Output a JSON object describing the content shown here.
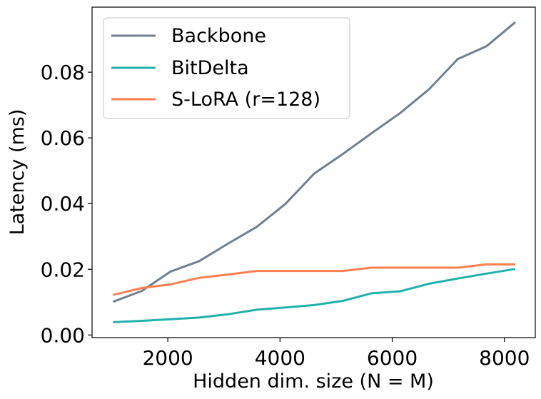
{
  "chart_data": {
    "type": "line",
    "xlabel": "Hidden dim. size (N = M)",
    "ylabel": "Latency (ms)",
    "xlim": [
      650,
      8550
    ],
    "ylim": [
      -0.0008,
      0.0998
    ],
    "xticks": [
      2000,
      4000,
      6000,
      8000
    ],
    "xtick_labels": [
      "2000",
      "4000",
      "6000",
      "8000"
    ],
    "yticks": [
      0.0,
      0.02,
      0.04,
      0.06,
      0.08
    ],
    "ytick_labels": [
      "0.00",
      "0.02",
      "0.04",
      "0.06",
      "0.08"
    ],
    "grid": false,
    "legend_position": "upper-left",
    "x": [
      1024,
      1536,
      2048,
      2560,
      3072,
      3584,
      4096,
      4608,
      5120,
      5632,
      6144,
      6656,
      7168,
      7680,
      8192
    ],
    "series": [
      {
        "name": "Backbone",
        "color": "#708090",
        "values": [
          0.0101,
          0.0134,
          0.0193,
          0.0225,
          0.0278,
          0.0329,
          0.0399,
          0.0491,
          0.0551,
          0.0614,
          0.0676,
          0.0748,
          0.084,
          0.0879,
          0.0952
        ]
      },
      {
        "name": "BitDelta",
        "color": "#20B2AA",
        "values": [
          0.0039,
          0.0043,
          0.0048,
          0.0053,
          0.0063,
          0.0077,
          0.0084,
          0.0091,
          0.0104,
          0.0127,
          0.0133,
          0.0156,
          0.0172,
          0.0187,
          0.0201
        ]
      },
      {
        "name": "S-LoRA (r=128)",
        "color": "#FF7F50",
        "values": [
          0.0122,
          0.0143,
          0.0154,
          0.0174,
          0.0184,
          0.0195,
          0.0195,
          0.0195,
          0.0195,
          0.0205,
          0.0205,
          0.0205,
          0.0205,
          0.0215,
          0.0215
        ]
      }
    ]
  }
}
